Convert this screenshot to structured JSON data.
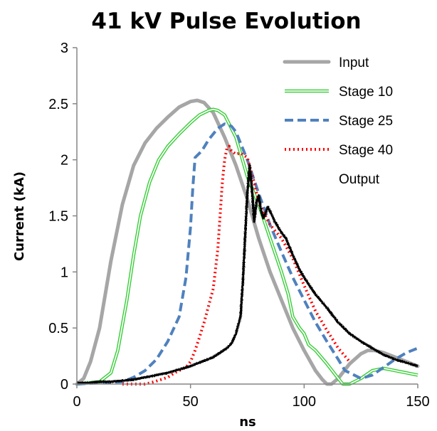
{
  "chart_data": {
    "type": "line",
    "title": "41 kV Pulse Evolution",
    "xlabel": "ns",
    "ylabel": "Current (kA)",
    "xlim": [
      0,
      150
    ],
    "ylim": [
      0,
      3
    ],
    "x_ticks": [
      "0",
      "50",
      "100",
      "150"
    ],
    "y_ticks": [
      "0",
      "0.5",
      "1",
      "1.5",
      "2",
      "2.5",
      "3"
    ],
    "grid": false,
    "legend_position": "top-right",
    "series": [
      {
        "name": "Input",
        "color": "#a6a6a6",
        "style": "solid-thick",
        "x": [
          0,
          3,
          6,
          10,
          15,
          20,
          25,
          30,
          35,
          40,
          45,
          50,
          53,
          56,
          60,
          65,
          70,
          75,
          80,
          85,
          90,
          95,
          100,
          105,
          108,
          110,
          112,
          115,
          120,
          125,
          128,
          131,
          135,
          140,
          145,
          150
        ],
        "y": [
          0.0,
          0.05,
          0.2,
          0.5,
          1.1,
          1.6,
          1.95,
          2.15,
          2.28,
          2.38,
          2.47,
          2.52,
          2.53,
          2.51,
          2.42,
          2.2,
          1.95,
          1.65,
          1.3,
          1.0,
          0.75,
          0.5,
          0.3,
          0.12,
          0.04,
          0.0,
          0.0,
          0.05,
          0.18,
          0.27,
          0.3,
          0.3,
          0.28,
          0.24,
          0.2,
          0.16
        ]
      },
      {
        "name": "Stage 10",
        "color": "#33cc33",
        "style": "double-line",
        "x": [
          0,
          10,
          15,
          18,
          22,
          25,
          28,
          32,
          36,
          40,
          45,
          50,
          54,
          58,
          60,
          62,
          65,
          70,
          75,
          80,
          85,
          90,
          93,
          95,
          98,
          100,
          102,
          105,
          110,
          115,
          117,
          120,
          125,
          130,
          135,
          140,
          145,
          150
        ],
        "y": [
          0.0,
          0.02,
          0.1,
          0.3,
          0.75,
          1.15,
          1.5,
          1.8,
          2.0,
          2.12,
          2.23,
          2.33,
          2.4,
          2.44,
          2.45,
          2.44,
          2.4,
          2.2,
          1.85,
          1.6,
          1.3,
          1.0,
          0.8,
          0.6,
          0.5,
          0.45,
          0.35,
          0.3,
          0.18,
          0.05,
          0.0,
          0.0,
          0.05,
          0.12,
          0.14,
          0.12,
          0.1,
          0.08
        ]
      },
      {
        "name": "Stage 25",
        "color": "#4f81bd",
        "style": "dashed",
        "x": [
          0,
          20,
          25,
          30,
          35,
          40,
          45,
          48,
          50,
          51,
          52,
          55,
          58,
          62,
          65,
          68,
          70,
          75,
          80,
          85,
          90,
          95,
          100,
          105,
          110,
          115,
          118,
          120,
          125,
          130,
          135,
          140,
          145,
          150
        ],
        "y": [
          0.0,
          0.02,
          0.06,
          0.12,
          0.22,
          0.38,
          0.6,
          0.95,
          1.4,
          1.75,
          2.02,
          2.08,
          2.18,
          2.28,
          2.32,
          2.3,
          2.25,
          2.0,
          1.7,
          1.42,
          1.18,
          0.95,
          0.75,
          0.55,
          0.38,
          0.22,
          0.12,
          0.1,
          0.05,
          0.08,
          0.15,
          0.22,
          0.28,
          0.32
        ]
      },
      {
        "name": "Stage 40",
        "color": "#ff0000",
        "style": "dotted",
        "x": [
          20,
          30,
          34,
          37,
          40,
          43,
          45,
          48,
          50,
          52,
          54,
          56,
          58,
          60,
          62,
          63,
          64,
          65,
          66,
          67,
          68,
          70,
          72,
          75,
          78,
          80,
          85,
          90,
          95,
          100,
          105,
          110,
          115,
          120
        ],
        "y": [
          0.0,
          0.0,
          0.02,
          0.04,
          0.06,
          0.1,
          0.12,
          0.15,
          0.2,
          0.3,
          0.42,
          0.55,
          0.7,
          0.85,
          1.2,
          1.5,
          1.8,
          2.0,
          2.1,
          2.12,
          2.08,
          2.05,
          2.06,
          2.02,
          1.8,
          1.62,
          1.42,
          1.3,
          1.12,
          0.88,
          0.65,
          0.48,
          0.32,
          0.2
        ]
      },
      {
        "name": "Output",
        "color": "#000000",
        "style": "solid-noisy",
        "x": [
          0,
          5,
          10,
          15,
          20,
          25,
          30,
          35,
          40,
          45,
          50,
          55,
          60,
          63,
          66,
          68,
          70,
          72,
          73,
          74,
          75,
          76,
          77,
          78,
          79,
          80,
          81,
          82,
          83,
          84,
          85,
          86,
          87,
          88,
          90,
          92,
          95,
          98,
          100,
          105,
          110,
          115,
          120,
          125,
          130,
          135,
          140,
          145,
          150
        ],
        "y": [
          0.01,
          0.01,
          0.02,
          0.02,
          0.03,
          0.04,
          0.06,
          0.08,
          0.1,
          0.13,
          0.16,
          0.2,
          0.24,
          0.28,
          0.32,
          0.36,
          0.45,
          0.6,
          0.9,
          1.3,
          1.7,
          1.95,
          1.75,
          1.45,
          1.62,
          1.68,
          1.55,
          1.48,
          1.52,
          1.58,
          1.54,
          1.5,
          1.45,
          1.42,
          1.35,
          1.3,
          1.15,
          1.02,
          0.95,
          0.8,
          0.68,
          0.55,
          0.45,
          0.38,
          0.32,
          0.26,
          0.22,
          0.19,
          0.16
        ]
      }
    ]
  }
}
